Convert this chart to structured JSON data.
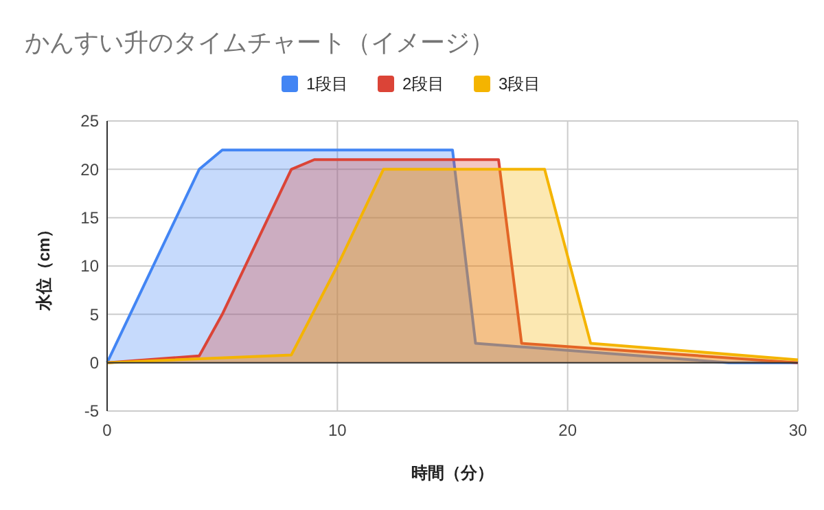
{
  "chart_data": {
    "type": "area",
    "title": "かんすい升のタイムチャート（イメージ）",
    "xlabel": "時間（分）",
    "ylabel": "水位（cm）",
    "xlim": [
      0,
      30
    ],
    "xticks": [
      0,
      10,
      20,
      30
    ],
    "ylim": [
      -5,
      25
    ],
    "yticks": [
      -5,
      0,
      5,
      10,
      15,
      20,
      25
    ],
    "grid": true,
    "legend": "top",
    "series": [
      {
        "name": "1段目",
        "color": "#4285f4",
        "x": [
          0,
          4,
          5,
          15,
          16,
          27,
          30
        ],
        "values": [
          0,
          20,
          22,
          22,
          2,
          0,
          0
        ]
      },
      {
        "name": "2段目",
        "color": "#db4437",
        "x": [
          0,
          4,
          5,
          8,
          9,
          17,
          18,
          30
        ],
        "values": [
          0,
          0.7,
          5,
          20,
          21,
          21,
          2,
          0
        ]
      },
      {
        "name": "3段目",
        "color": "#f4b400",
        "x": [
          0,
          8,
          10,
          12,
          19,
          21,
          30
        ],
        "values": [
          0,
          0.8,
          10,
          20,
          20,
          2,
          0.3
        ]
      }
    ]
  }
}
